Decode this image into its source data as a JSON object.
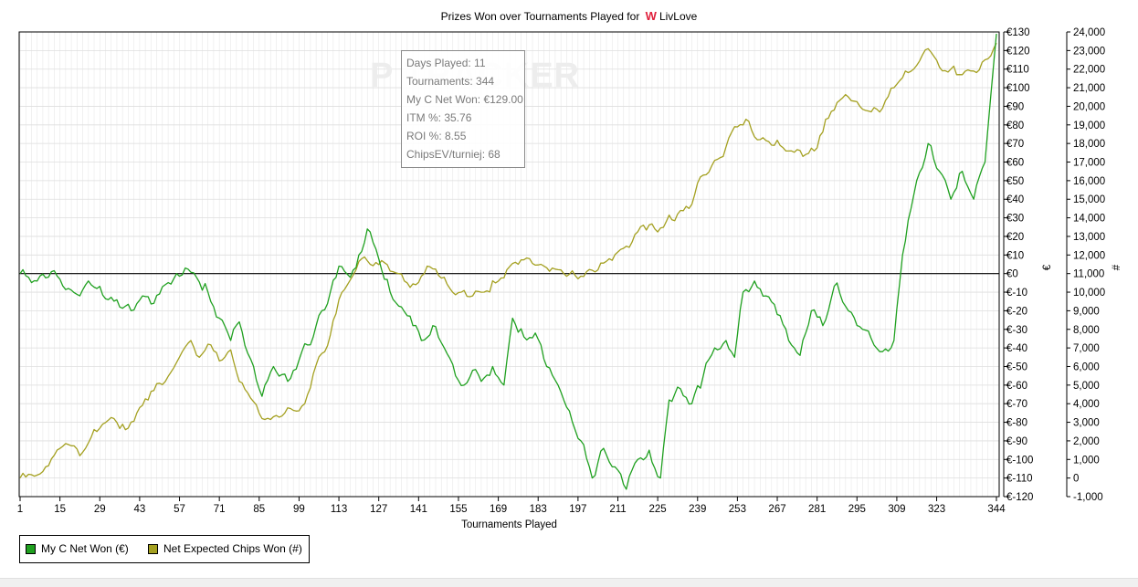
{
  "title_prefix": "Prizes Won over Tournaments Played for",
  "player_name": "LivLove",
  "site_logo_glyph": "W",
  "watermark": "P   TRACKER",
  "tooltip": {
    "days": "Days Played: 11",
    "tournaments": "Tournaments: 344",
    "net_won": "My C Net Won: €129.00",
    "itm": "ITM %: 35.76",
    "roi": "ROI %: 8.55",
    "chipsev": "ChipsEV/turniej: 68"
  },
  "legend": {
    "net_won": "My C Net Won (€)",
    "chips": "Net Expected Chips Won (#)"
  },
  "colors": {
    "net_won": "#1fa01f",
    "chips": "#a4a020",
    "grid": "#e8e8e8",
    "zero_line": "#000000"
  },
  "chart_data": {
    "type": "line",
    "title": "Prizes Won over Tournaments Played for LivLove",
    "xlabel": "Tournaments Played",
    "x_ticks": [
      1,
      15,
      29,
      43,
      57,
      71,
      85,
      99,
      113,
      127,
      141,
      155,
      169,
      183,
      197,
      211,
      225,
      239,
      253,
      267,
      281,
      295,
      309,
      323,
      344
    ],
    "xlim": [
      1,
      344
    ],
    "y_left": {
      "label": "€",
      "ylim": [
        -120,
        130
      ],
      "ticks": [
        "€130",
        "€120",
        "€110",
        "€100",
        "€90",
        "€80",
        "€70",
        "€60",
        "€50",
        "€40",
        "€30",
        "€20",
        "€10",
        "€0",
        "€-10",
        "€-20",
        "€-30",
        "€-40",
        "€-50",
        "€-60",
        "€-70",
        "€-80",
        "€-90",
        "€-100",
        "€-110",
        "€-120"
      ]
    },
    "y_right": {
      "label": "#",
      "ylim": [
        -1000,
        24000
      ],
      "ticks": [
        "24,000",
        "23,000",
        "22,000",
        "21,000",
        "20,000",
        "19,000",
        "18,000",
        "17,000",
        "16,000",
        "15,000",
        "14,000",
        "13,000",
        "12,000",
        "11,000",
        "10,000",
        "9,000",
        "8,000",
        "7,000",
        "6,000",
        "5,000",
        "4,000",
        "3,000",
        "2,000",
        "1,000",
        "0",
        "-1,000"
      ]
    },
    "series": [
      {
        "name": "My C Net Won (€)",
        "axis": "left",
        "points": [
          [
            1,
            0
          ],
          [
            4,
            -2
          ],
          [
            7,
            -4
          ],
          [
            12,
            1
          ],
          [
            15,
            -3
          ],
          [
            18,
            -8
          ],
          [
            22,
            -12
          ],
          [
            25,
            -4
          ],
          [
            28,
            -8
          ],
          [
            32,
            -14
          ],
          [
            36,
            -18
          ],
          [
            40,
            -20
          ],
          [
            44,
            -12
          ],
          [
            48,
            -16
          ],
          [
            52,
            -6
          ],
          [
            56,
            0
          ],
          [
            59,
            3
          ],
          [
            63,
            -2
          ],
          [
            67,
            -10
          ],
          [
            71,
            -24
          ],
          [
            75,
            -36
          ],
          [
            78,
            -26
          ],
          [
            82,
            -46
          ],
          [
            86,
            -66
          ],
          [
            90,
            -50
          ],
          [
            95,
            -58
          ],
          [
            100,
            -42
          ],
          [
            104,
            -34
          ],
          [
            107,
            -20
          ],
          [
            110,
            -10
          ],
          [
            113,
            4
          ],
          [
            117,
            -2
          ],
          [
            120,
            10
          ],
          [
            123,
            24
          ],
          [
            127,
            8
          ],
          [
            131,
            -10
          ],
          [
            135,
            -18
          ],
          [
            139,
            -28
          ],
          [
            142,
            -36
          ],
          [
            146,
            -28
          ],
          [
            150,
            -40
          ],
          [
            154,
            -55
          ],
          [
            157,
            -60
          ],
          [
            160,
            -52
          ],
          [
            163,
            -58
          ],
          [
            167,
            -50
          ],
          [
            171,
            -60
          ],
          [
            174,
            -24
          ],
          [
            178,
            -34
          ],
          [
            182,
            -32
          ],
          [
            186,
            -50
          ],
          [
            190,
            -60
          ],
          [
            194,
            -74
          ],
          [
            198,
            -90
          ],
          [
            202,
            -110
          ],
          [
            206,
            -94
          ],
          [
            210,
            -104
          ],
          [
            214,
            -116
          ],
          [
            218,
            -100
          ],
          [
            222,
            -95
          ],
          [
            226,
            -110
          ],
          [
            229,
            -68
          ],
          [
            233,
            -62
          ],
          [
            237,
            -70
          ],
          [
            241,
            -55
          ],
          [
            245,
            -40
          ],
          [
            249,
            -36
          ],
          [
            252,
            -45
          ],
          [
            255,
            -10
          ],
          [
            259,
            -4
          ],
          [
            263,
            -12
          ],
          [
            267,
            -22
          ],
          [
            271,
            -36
          ],
          [
            275,
            -44
          ],
          [
            279,
            -20
          ],
          [
            283,
            -28
          ],
          [
            288,
            -5
          ],
          [
            292,
            -20
          ],
          [
            297,
            -30
          ],
          [
            300,
            -35
          ],
          [
            304,
            -42
          ],
          [
            308,
            -36
          ],
          [
            311,
            10
          ],
          [
            316,
            50
          ],
          [
            320,
            70
          ],
          [
            324,
            55
          ],
          [
            328,
            40
          ],
          [
            332,
            55
          ],
          [
            336,
            40
          ],
          [
            340,
            60
          ],
          [
            344,
            129
          ]
        ]
      },
      {
        "name": "Net Expected Chips Won (#)",
        "axis": "right",
        "points": [
          [
            1,
            0
          ],
          [
            6,
            100
          ],
          [
            10,
            600
          ],
          [
            14,
            1500
          ],
          [
            18,
            1800
          ],
          [
            22,
            1200
          ],
          [
            26,
            2200
          ],
          [
            30,
            2900
          ],
          [
            34,
            3200
          ],
          [
            38,
            2600
          ],
          [
            42,
            3500
          ],
          [
            46,
            4200
          ],
          [
            50,
            5100
          ],
          [
            54,
            5700
          ],
          [
            58,
            6800
          ],
          [
            61,
            7400
          ],
          [
            64,
            6500
          ],
          [
            67,
            7200
          ],
          [
            71,
            6300
          ],
          [
            75,
            6900
          ],
          [
            78,
            5200
          ],
          [
            82,
            4300
          ],
          [
            86,
            3200
          ],
          [
            90,
            3300
          ],
          [
            94,
            3500
          ],
          [
            98,
            3600
          ],
          [
            101,
            4000
          ],
          [
            104,
            5600
          ],
          [
            107,
            6700
          ],
          [
            110,
            7700
          ],
          [
            113,
            9600
          ],
          [
            116,
            10400
          ],
          [
            119,
            11200
          ],
          [
            121,
            11800
          ],
          [
            124,
            11500
          ],
          [
            128,
            11700
          ],
          [
            132,
            11100
          ],
          [
            136,
            10600
          ],
          [
            140,
            10400
          ],
          [
            144,
            11400
          ],
          [
            148,
            10900
          ],
          [
            152,
            10200
          ],
          [
            156,
            10000
          ],
          [
            160,
            9800
          ],
          [
            164,
            10000
          ],
          [
            168,
            10500
          ],
          [
            172,
            11200
          ],
          [
            176,
            11500
          ],
          [
            180,
            11800
          ],
          [
            184,
            11500
          ],
          [
            188,
            11300
          ],
          [
            192,
            11000
          ],
          [
            196,
            10900
          ],
          [
            200,
            11100
          ],
          [
            204,
            11200
          ],
          [
            208,
            11800
          ],
          [
            212,
            12300
          ],
          [
            216,
            12700
          ],
          [
            220,
            13600
          ],
          [
            224,
            13400
          ],
          [
            228,
            13800
          ],
          [
            232,
            14200
          ],
          [
            236,
            14500
          ],
          [
            240,
            16200
          ],
          [
            244,
            16800
          ],
          [
            248,
            17300
          ],
          [
            252,
            18900
          ],
          [
            256,
            19300
          ],
          [
            260,
            18200
          ],
          [
            264,
            18100
          ],
          [
            268,
            17900
          ],
          [
            272,
            17600
          ],
          [
            276,
            17300
          ],
          [
            280,
            17600
          ],
          [
            284,
            19300
          ],
          [
            288,
            20200
          ],
          [
            292,
            20500
          ],
          [
            296,
            20000
          ],
          [
            300,
            19700
          ],
          [
            304,
            19900
          ],
          [
            308,
            21000
          ],
          [
            312,
            21900
          ],
          [
            316,
            22200
          ],
          [
            320,
            23100
          ],
          [
            324,
            22100
          ],
          [
            328,
            22000
          ],
          [
            332,
            21700
          ],
          [
            336,
            21900
          ],
          [
            340,
            22500
          ],
          [
            344,
            23400
          ]
        ]
      }
    ],
    "legend_position": "bottom-left",
    "grid": true
  }
}
